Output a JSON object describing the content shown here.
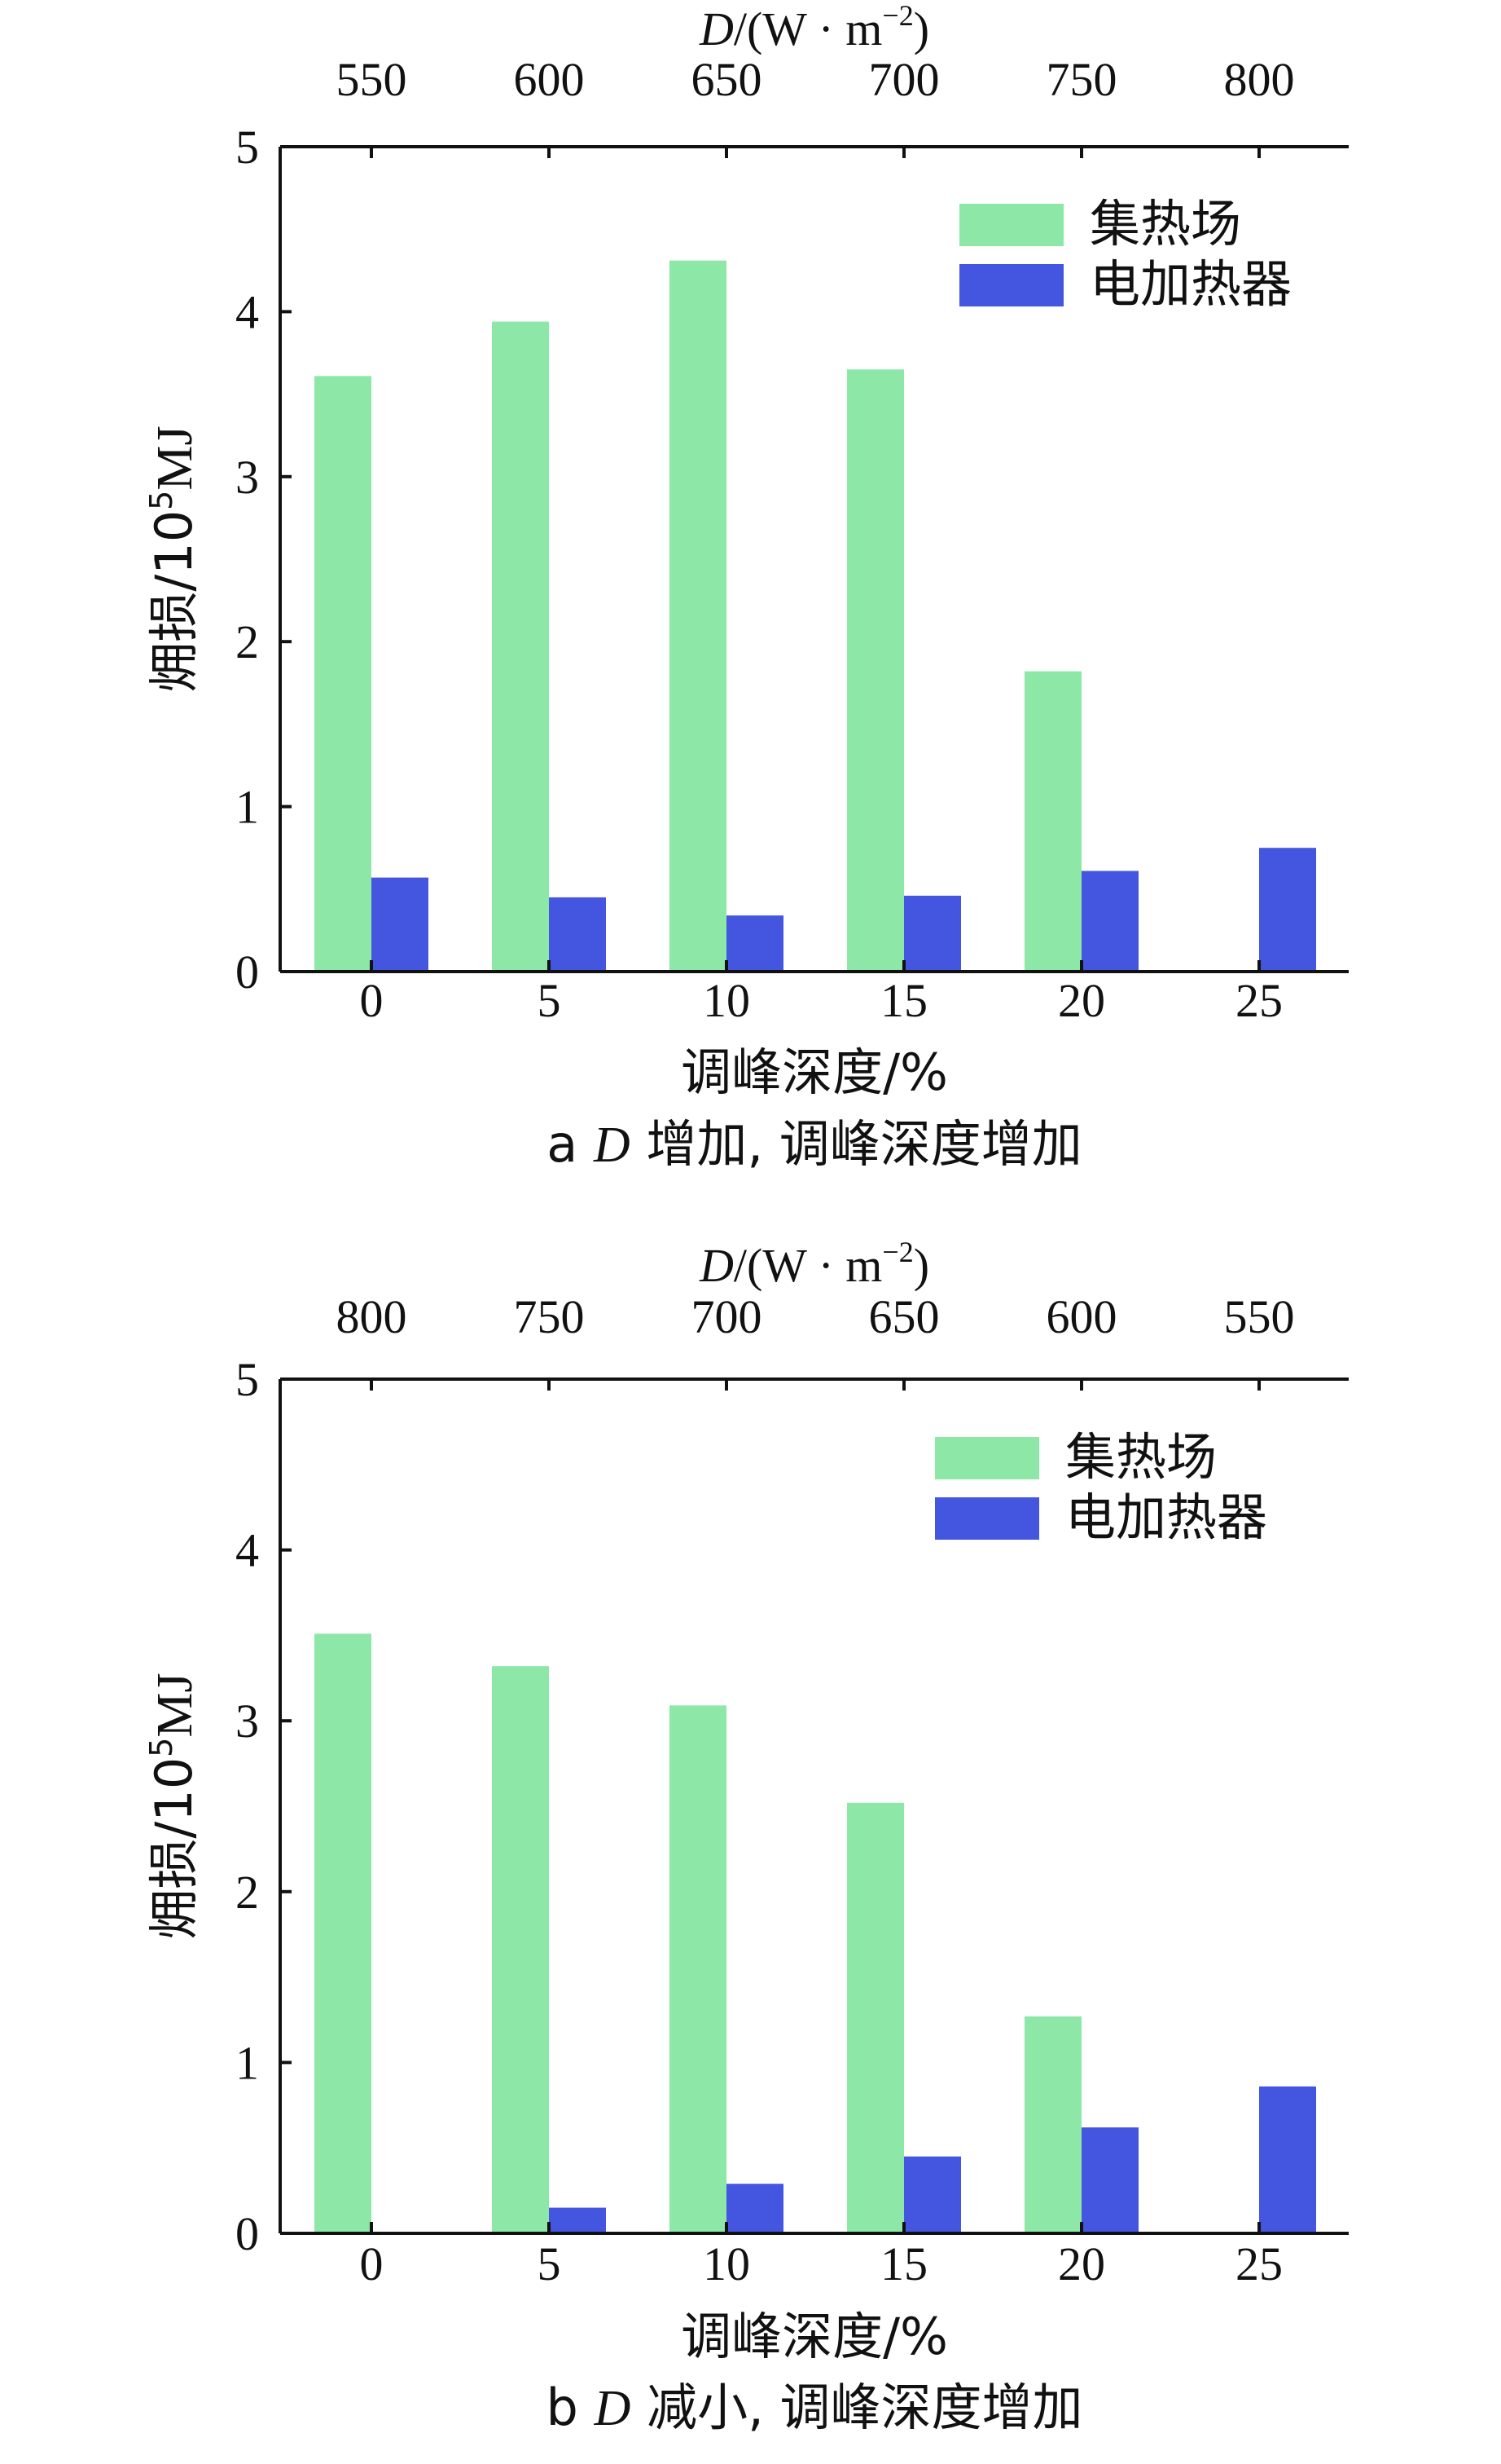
{
  "colors": {
    "collector": "#8de8a8",
    "heater": "#4456e0"
  },
  "chart_data": [
    {
      "type": "bar",
      "panel_label": "a",
      "caption": {
        "prefix": "a ",
        "var": "D",
        "suffix": " 增加, 调峰深度增加"
      },
      "top_axis_title": {
        "var": "D",
        "unit_main": "/(W · m",
        "unit_exp": "−2",
        "unit_close": ")"
      },
      "top_ticks": [
        "550",
        "600",
        "650",
        "700",
        "750",
        "800"
      ],
      "categories": [
        "0",
        "5",
        "10",
        "15",
        "20",
        "25"
      ],
      "xlabel": "调峰深度/%",
      "ylabel": {
        "main": "㶲损/10",
        "exp": "5",
        "unit": "MJ"
      },
      "yticks": [
        "0",
        "1",
        "2",
        "3",
        "4",
        "5"
      ],
      "ylim": [
        0,
        5
      ],
      "legend_position": "top-right",
      "series": [
        {
          "name": "集热场",
          "color": "#8de8a8",
          "values": [
            3.61,
            3.94,
            4.31,
            3.65,
            1.82,
            0
          ]
        },
        {
          "name": "电加热器",
          "color": "#4456e0",
          "values": [
            0.57,
            0.45,
            0.34,
            0.46,
            0.61,
            0.75
          ]
        }
      ]
    },
    {
      "type": "bar",
      "panel_label": "b",
      "caption": {
        "prefix": "b ",
        "var": "D",
        "suffix": " 减小, 调峰深度增加"
      },
      "top_axis_title": {
        "var": "D",
        "unit_main": "/(W · m",
        "unit_exp": "−2",
        "unit_close": ")"
      },
      "top_ticks": [
        "800",
        "750",
        "700",
        "650",
        "600",
        "550"
      ],
      "categories": [
        "0",
        "5",
        "10",
        "15",
        "20",
        "25"
      ],
      "xlabel": "调峰深度/%",
      "ylabel": {
        "main": "㶲损/10",
        "exp": "5",
        "unit": "MJ"
      },
      "yticks": [
        "0",
        "1",
        "2",
        "3",
        "4",
        "5"
      ],
      "ylim": [
        0,
        5
      ],
      "legend_position": "top-right",
      "series": [
        {
          "name": "集热场",
          "color": "#8de8a8",
          "values": [
            3.51,
            3.32,
            3.09,
            2.52,
            1.27,
            0
          ]
        },
        {
          "name": "电加热器",
          "color": "#4456e0",
          "values": [
            0,
            0.15,
            0.29,
            0.45,
            0.62,
            0.86
          ]
        }
      ]
    }
  ]
}
